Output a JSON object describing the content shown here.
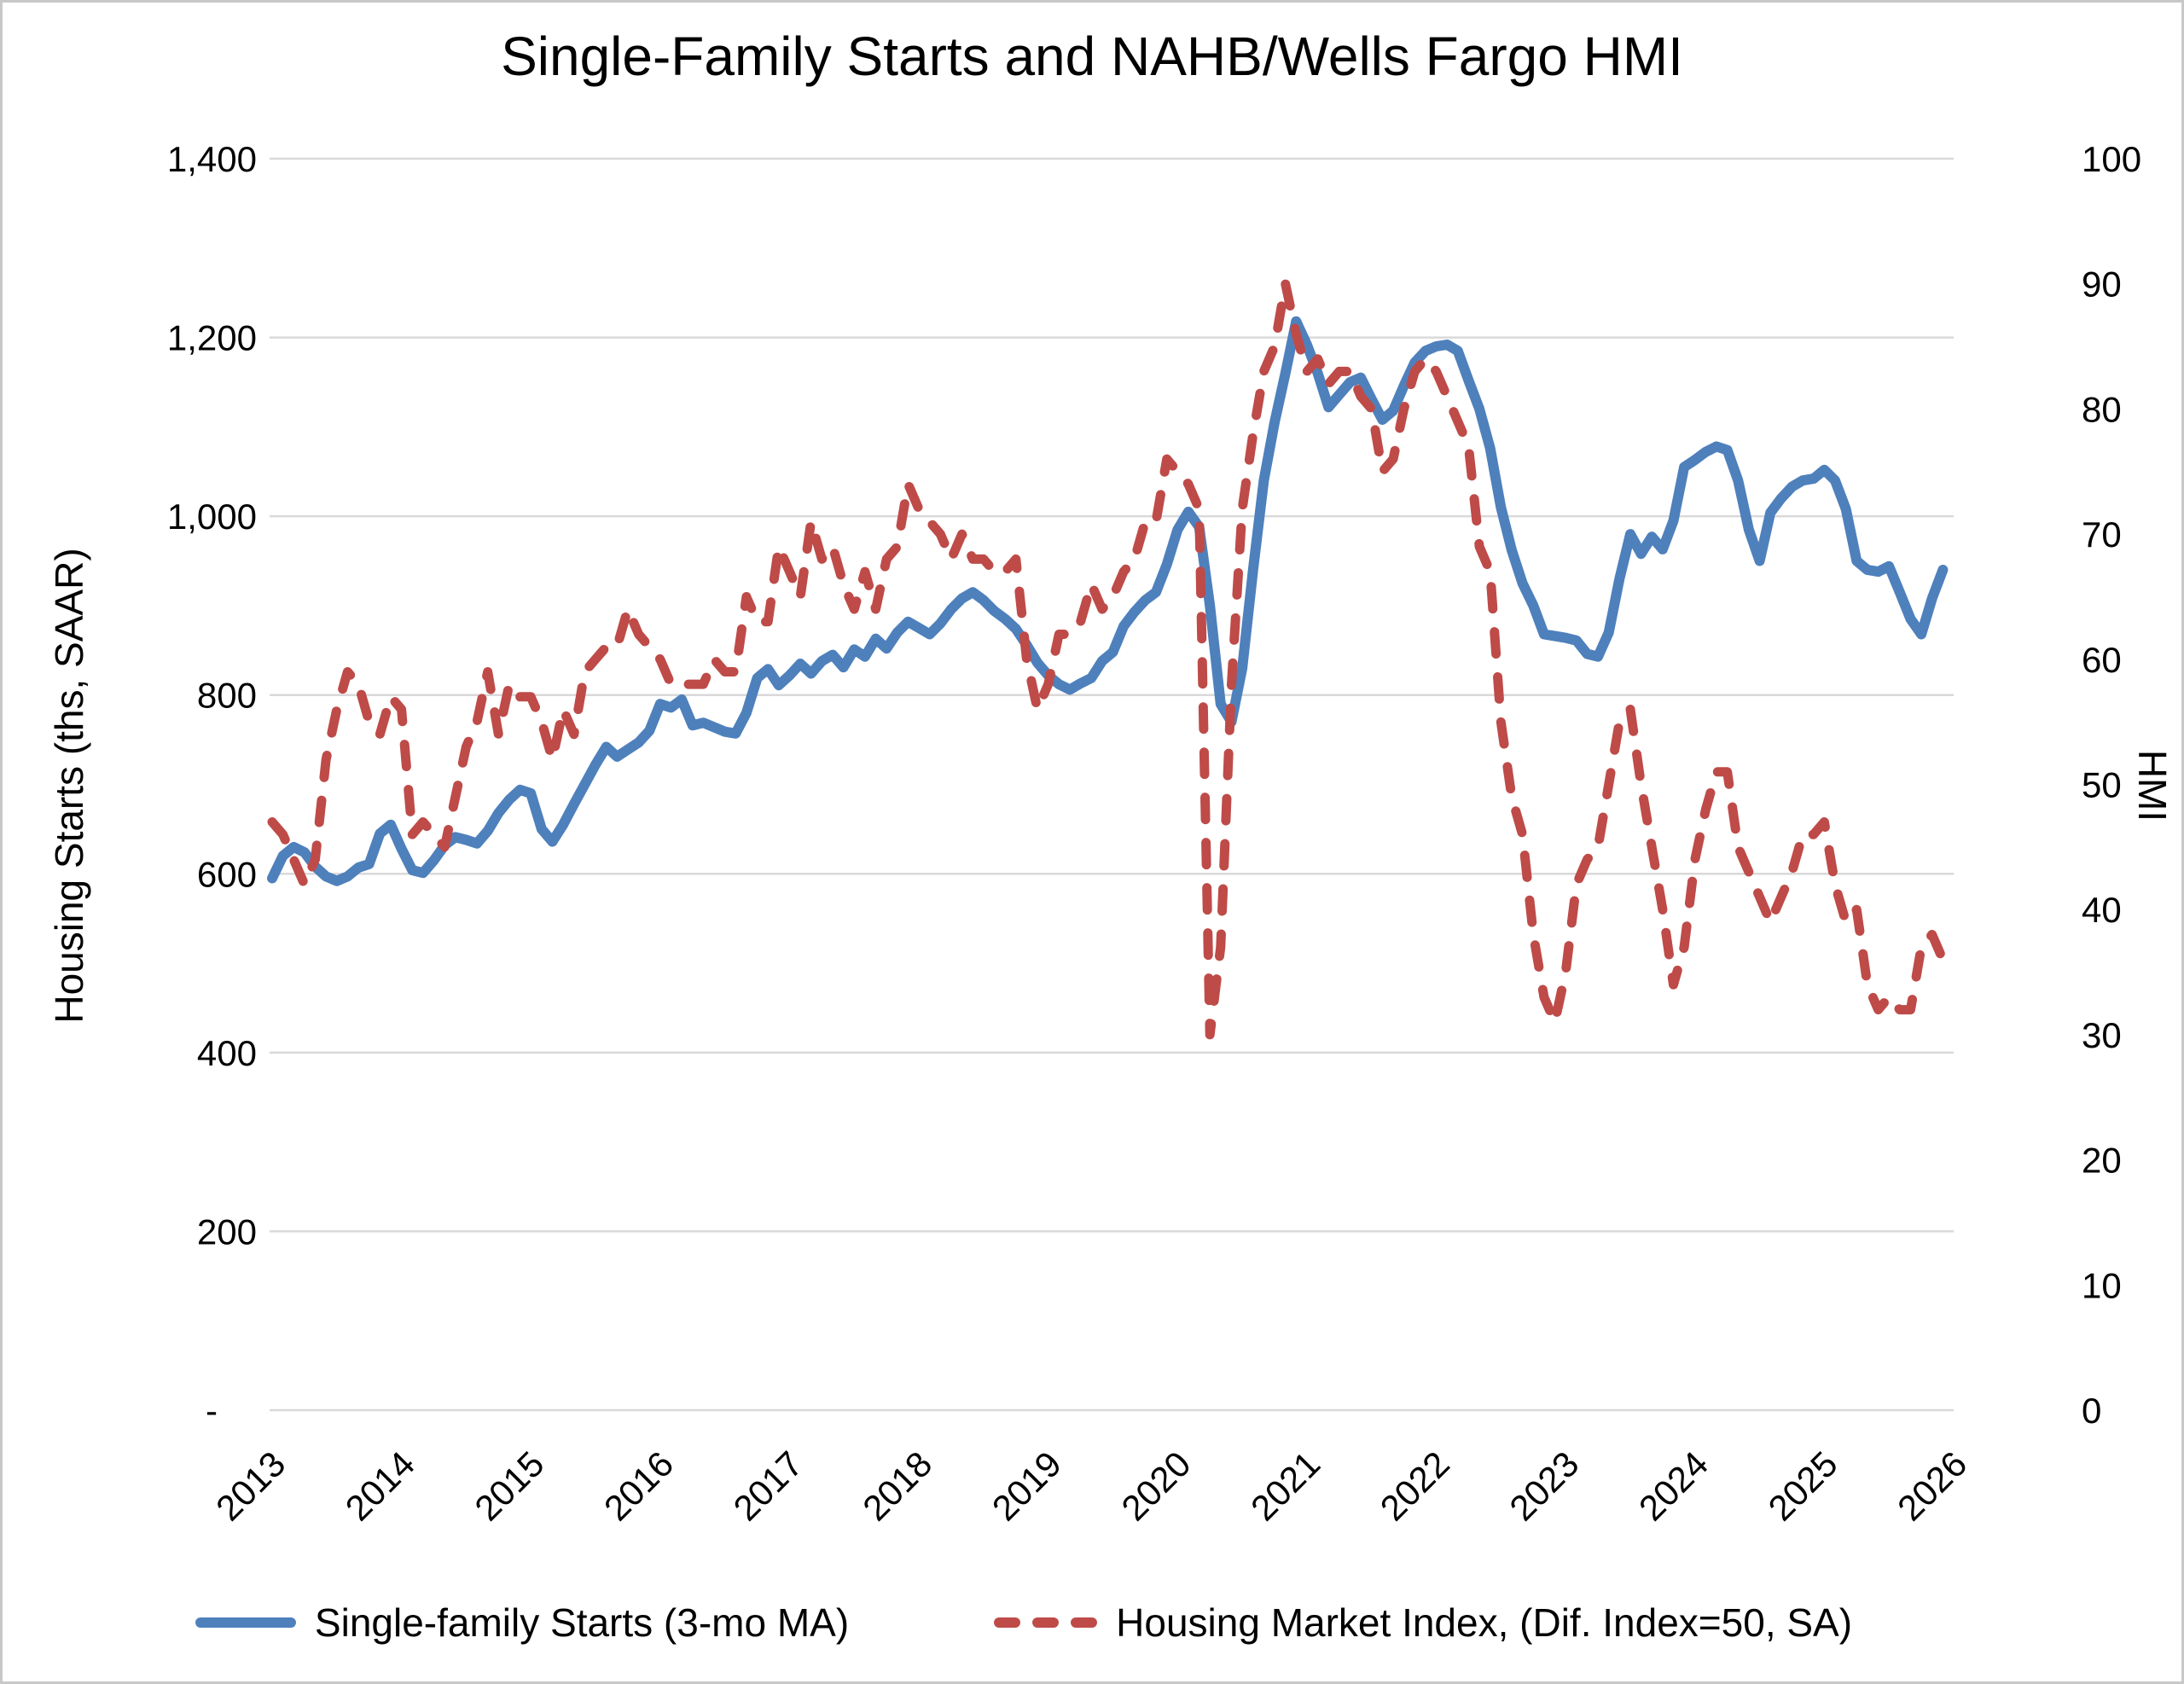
{
  "title": "Single-Family Starts and NAHB/Wells Fargo HMI",
  "left_axis": {
    "title": "Housing Starts (ths, SAAR)",
    "ticks": [
      {
        "label": "1,400",
        "value": 1400
      },
      {
        "label": "1,200",
        "value": 1200
      },
      {
        "label": "1,000",
        "value": 1000
      },
      {
        "label": "800",
        "value": 800
      },
      {
        "label": "600",
        "value": 600
      },
      {
        "label": "400",
        "value": 400
      },
      {
        "label": "200",
        "value": 200
      },
      {
        "label": "-",
        "value": 0
      }
    ]
  },
  "right_axis": {
    "title": "HMI",
    "ticks": [
      {
        "label": "100",
        "value": 100
      },
      {
        "label": "90",
        "value": 90
      },
      {
        "label": "80",
        "value": 80
      },
      {
        "label": "70",
        "value": 70
      },
      {
        "label": "60",
        "value": 60
      },
      {
        "label": "50",
        "value": 50
      },
      {
        "label": "40",
        "value": 40
      },
      {
        "label": "30",
        "value": 30
      },
      {
        "label": "20",
        "value": 20
      },
      {
        "label": "10",
        "value": 10
      },
      {
        "label": "0",
        "value": 0
      }
    ]
  },
  "x_axis": {
    "year_labels": [
      "2013",
      "2014",
      "2015",
      "2016",
      "2017",
      "2018",
      "2019",
      "2020",
      "2021",
      "2022",
      "2023",
      "2024",
      "2025",
      "2026"
    ]
  },
  "legend": [
    {
      "label": "Single-family Starts (3-mo MA)",
      "color": "#4E80BC",
      "style": "solid"
    },
    {
      "label": "Housing Market Index, (Dif. Index=50, SA)",
      "color": "#BE4B48",
      "style": "dashed"
    }
  ],
  "colors": {
    "blue_series": "#4E80BC",
    "red_series": "#BE4B48",
    "gridline": "#D9D9D9",
    "text": "#000000"
  },
  "chart_data": {
    "type": "line",
    "title": "Single-Family Starts and NAHB/Wells Fargo HMI",
    "frequency": "monthly",
    "x_start": "2013-01",
    "x_end": "2025-12",
    "xlabel": "",
    "left_ylabel": "Housing Starts (ths, SAAR)",
    "right_ylabel": "HMI",
    "left_ylim": [
      0,
      1400
    ],
    "left_ytick_step": 200,
    "right_ylim": [
      0,
      100
    ],
    "right_ytick_step": 10,
    "grid": "horizontal",
    "legend_position": "bottom",
    "series": [
      {
        "name": "Single-family Starts (3-mo MA)",
        "axis": "left",
        "style": "solid",
        "color": "#4E80BC",
        "values": [
          595,
          620,
          630,
          624,
          608,
          597,
          592,
          597,
          607,
          611,
          645,
          655,
          628,
          604,
          601,
          615,
          632,
          641,
          638,
          634,
          648,
          668,
          683,
          694,
          690,
          650,
          636,
          655,
          678,
          700,
          722,
          742,
          731,
          739,
          747,
          760,
          790,
          786,
          795,
          766,
          769,
          764,
          759,
          757,
          780,
          819,
          829,
          811,
          822,
          835,
          824,
          838,
          845,
          831,
          851,
          843,
          863,
          852,
          870,
          882,
          875,
          868,
          880,
          896,
          908,
          915,
          906,
          894,
          885,
          874,
          856,
          836,
          822,
          812,
          806,
          813,
          819,
          838,
          848,
          877,
          893,
          906,
          915,
          946,
          985,
          1005,
          988,
          900,
          790,
          770,
          830,
          940,
          1040,
          1105,
          1160,
          1218,
          1192,
          1160,
          1122,
          1136,
          1150,
          1155,
          1131,
          1108,
          1118,
          1146,
          1172,
          1185,
          1190,
          1192,
          1185,
          1152,
          1120,
          1076,
          1010,
          962,
          925,
          900,
          868,
          866,
          864,
          861,
          846,
          843,
          870,
          930,
          980,
          958,
          977,
          963,
          995,
          1055,
          1063,
          1072,
          1078,
          1074,
          1040,
          985,
          950,
          1004,
          1020,
          1033,
          1040,
          1042,
          1052,
          1040,
          1008,
          950,
          940,
          938,
          944,
          915,
          885,
          868,
          908,
          940
        ]
      },
      {
        "name": "Housing Market Index, (Dif. Index=50, SA)",
        "axis": "right",
        "style": "dashed",
        "color": "#BE4B48",
        "values": [
          47,
          46,
          44,
          42,
          44,
          52,
          56,
          59,
          58,
          55,
          54,
          57,
          56,
          46,
          47,
          46,
          45,
          49,
          53,
          55,
          59,
          54,
          58,
          57,
          57,
          55,
          52,
          56,
          54,
          59,
          60,
          61,
          61,
          64,
          62,
          61,
          60,
          58,
          58,
          58,
          58,
          60,
          59,
          59,
          65,
          63,
          63,
          69,
          67,
          65,
          71,
          68,
          69,
          66,
          64,
          67,
          64,
          68,
          69,
          74,
          72,
          71,
          70,
          68,
          70,
          68,
          68,
          67,
          67,
          68,
          60,
          56,
          58,
          62,
          62,
          63,
          66,
          64,
          65,
          67,
          68,
          71,
          71,
          76,
          75,
          74,
          72,
          30,
          37,
          58,
          72,
          78,
          83,
          85,
          90,
          86,
          83,
          84,
          82,
          83,
          83,
          81,
          80,
          75,
          76,
          80,
          83,
          84,
          83,
          81,
          79,
          77,
          69,
          67,
          55,
          49,
          46,
          38,
          33,
          31,
          35,
          42,
          44,
          45,
          50,
          55,
          56,
          50,
          45,
          40,
          34,
          37,
          44,
          48,
          51,
          51,
          45,
          43,
          41,
          39,
          41,
          43,
          46,
          46,
          47,
          42,
          39,
          40,
          34,
          32,
          33,
          32,
          32,
          37,
          38,
          36
        ]
      }
    ]
  }
}
